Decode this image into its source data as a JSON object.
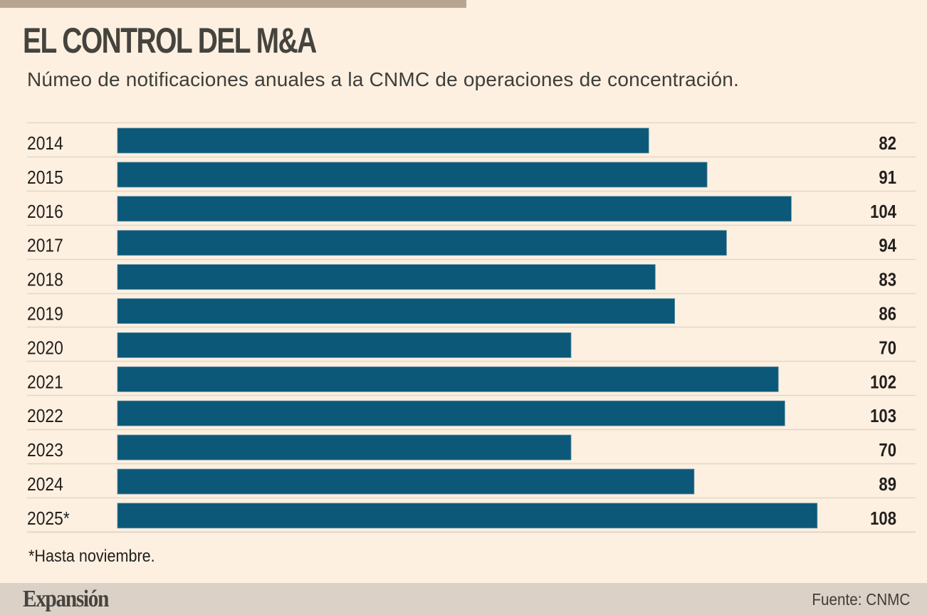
{
  "header": {
    "title": "EL CONTROL DEL M&A",
    "subtitle": "Númeo de notificaciones anuales a la CNMC de operaciones de concentración."
  },
  "footnote": "*Hasta noviembre.",
  "footer": {
    "brand": "Expansión",
    "source": "Fuente: CNMC"
  },
  "colors": {
    "bar": "#0b5878",
    "background": "#fdf0e1",
    "gridline": "#e2d6c8",
    "text": "#231f1c"
  },
  "chart_data": {
    "type": "bar",
    "orientation": "horizontal",
    "title": "EL CONTROL DEL M&A",
    "subtitle": "Númeo de notificaciones anuales a la CNMC de operaciones de concentración.",
    "xlabel": "",
    "ylabel": "",
    "categories": [
      "2014",
      "2015",
      "2016",
      "2017",
      "2018",
      "2019",
      "2020",
      "2021",
      "2022",
      "2023",
      "2024",
      "2025*"
    ],
    "values": [
      82,
      91,
      104,
      94,
      83,
      86,
      70,
      102,
      103,
      70,
      89,
      108
    ],
    "value_labels": [
      "82",
      "91",
      "104",
      "94",
      "83",
      "86",
      "70",
      "102",
      "103",
      "70",
      "89",
      "108"
    ],
    "xlim": [
      0,
      108
    ],
    "grid": false,
    "legend": "none",
    "annotations": [
      "*Hasta noviembre."
    ]
  }
}
